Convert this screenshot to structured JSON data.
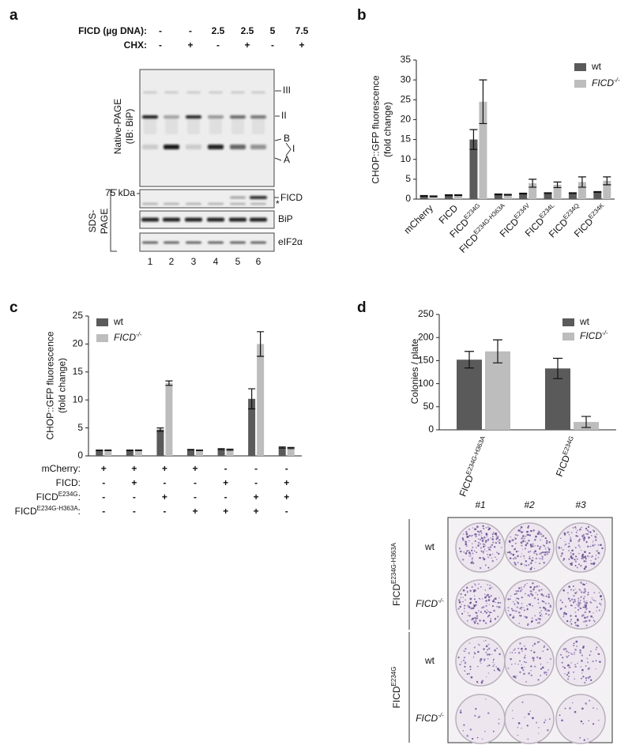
{
  "panel_labels": [
    "a",
    "b",
    "c",
    "d"
  ],
  "gel": {
    "header_rows": [
      {
        "label": "FICD (µg DNA):",
        "values": [
          "-",
          "-",
          "2.5",
          "2.5",
          "5",
          "7.5"
        ]
      },
      {
        "label": "CHX:",
        "values": [
          "-",
          "+",
          "-",
          "+",
          "-",
          "+"
        ]
      }
    ],
    "native_label": [
      "Native-PAGE",
      "(IB: BiP)"
    ],
    "band_labels": [
      "III",
      "II",
      "B",
      "I",
      "A"
    ],
    "marker": "75 kDa",
    "strip_labels": [
      "FICD",
      "*",
      "BiP",
      "eIF2α"
    ],
    "sds_label": [
      "SDS-",
      "PAGE"
    ],
    "lanes": [
      "1",
      "2",
      "3",
      "4",
      "5",
      "6"
    ]
  },
  "chart_data": [
    {
      "type": "bar",
      "ylabel": [
        "CHOP::GFP fluorescence",
        "(fold change)"
      ],
      "categories": [
        "mCherry",
        "FICD",
        "FICD",
        "FICD",
        "FICD",
        "FICD",
        "FICD",
        "FICD"
      ],
      "category_superscripts": [
        null,
        null,
        "E234G",
        "E234G-H363A",
        "E234V",
        "E234L",
        "E234Q",
        "E234K"
      ],
      "series": [
        {
          "name": "wt",
          "color": "#5a5a5a",
          "values": [
            0.8,
            1.0,
            15,
            1.2,
            1.4,
            1.5,
            1.5,
            1.8
          ],
          "errors": [
            0.1,
            0.1,
            2.5,
            0.1,
            0.1,
            0.1,
            0.1,
            0.1
          ]
        },
        {
          "name": "FICD",
          "name_superscript": "-/-",
          "color": "#bdbdbd",
          "values": [
            0.7,
            1.0,
            24.5,
            1.1,
            4.0,
            3.6,
            4.3,
            4.6
          ],
          "errors": [
            0.1,
            0.1,
            5.5,
            0.1,
            1.0,
            0.7,
            1.3,
            1.0
          ]
        }
      ],
      "ylim": [
        0,
        35
      ],
      "yticks": [
        0,
        5,
        10,
        15,
        20,
        25,
        30,
        35
      ]
    },
    {
      "type": "bar",
      "ylabel": [
        "CHOP::GFP fluorescence",
        "(fold change)"
      ],
      "categories": [
        null,
        null,
        null,
        null,
        null,
        null,
        null
      ],
      "series": [
        {
          "name": "wt",
          "color": "#5a5a5a",
          "values": [
            1,
            1,
            4.7,
            1.1,
            1.2,
            10.2,
            1.5
          ],
          "errors": [
            0.05,
            0.05,
            0.3,
            0.05,
            0.1,
            1.8,
            0.1
          ]
        },
        {
          "name": "FICD",
          "name_superscript": "-/-",
          "color": "#bdbdbd",
          "values": [
            1,
            1,
            13,
            1,
            1.1,
            20,
            1.4
          ],
          "errors": [
            0.05,
            0.05,
            0.4,
            0.05,
            0.1,
            2.2,
            0.1
          ]
        }
      ],
      "ylim": [
        0,
        25
      ],
      "yticks": [
        0,
        5,
        10,
        15,
        20,
        25
      ],
      "condition_table": {
        "row_labels": [
          [
            "mCherry:"
          ],
          [
            "FICD:"
          ],
          [
            "FICD",
            "E234G",
            ":"
          ],
          [
            "FICD",
            "E234G-H363A",
            ":"
          ]
        ],
        "rows": [
          [
            "+",
            "+",
            "+",
            "+",
            "-",
            "-",
            "-"
          ],
          [
            "-",
            "+",
            "-",
            "-",
            "+",
            "-",
            "+"
          ],
          [
            "-",
            "-",
            "+",
            "-",
            "-",
            "+",
            "+"
          ],
          [
            "-",
            "-",
            "-",
            "+",
            "+",
            "+",
            "-"
          ]
        ]
      }
    },
    {
      "type": "bar",
      "ylabel": [
        "Colonies / plate"
      ],
      "categories": [
        "FICD",
        "FICD"
      ],
      "category_superscripts": [
        "E234G-H363A",
        "E234G"
      ],
      "series": [
        {
          "name": "wt",
          "color": "#5a5a5a",
          "values": [
            152,
            133
          ],
          "errors": [
            18,
            22
          ]
        },
        {
          "name": "FICD",
          "name_superscript": "-/-",
          "color": "#bdbdbd",
          "values": [
            170,
            17
          ],
          "errors": [
            25,
            12
          ]
        }
      ],
      "ylim": [
        0,
        250
      ],
      "yticks": [
        0,
        50,
        100,
        150,
        200,
        250
      ]
    }
  ],
  "plates": {
    "columns": [
      "#1",
      "#2",
      "#3"
    ],
    "rows": [
      [
        "wt"
      ],
      [
        "FICD",
        "-/-"
      ],
      [
        "wt"
      ],
      [
        "FICD",
        "-/-"
      ]
    ],
    "groups": [
      [
        "FICD",
        "E234G-H363A"
      ],
      [
        "FICD",
        "E234G"
      ]
    ]
  }
}
